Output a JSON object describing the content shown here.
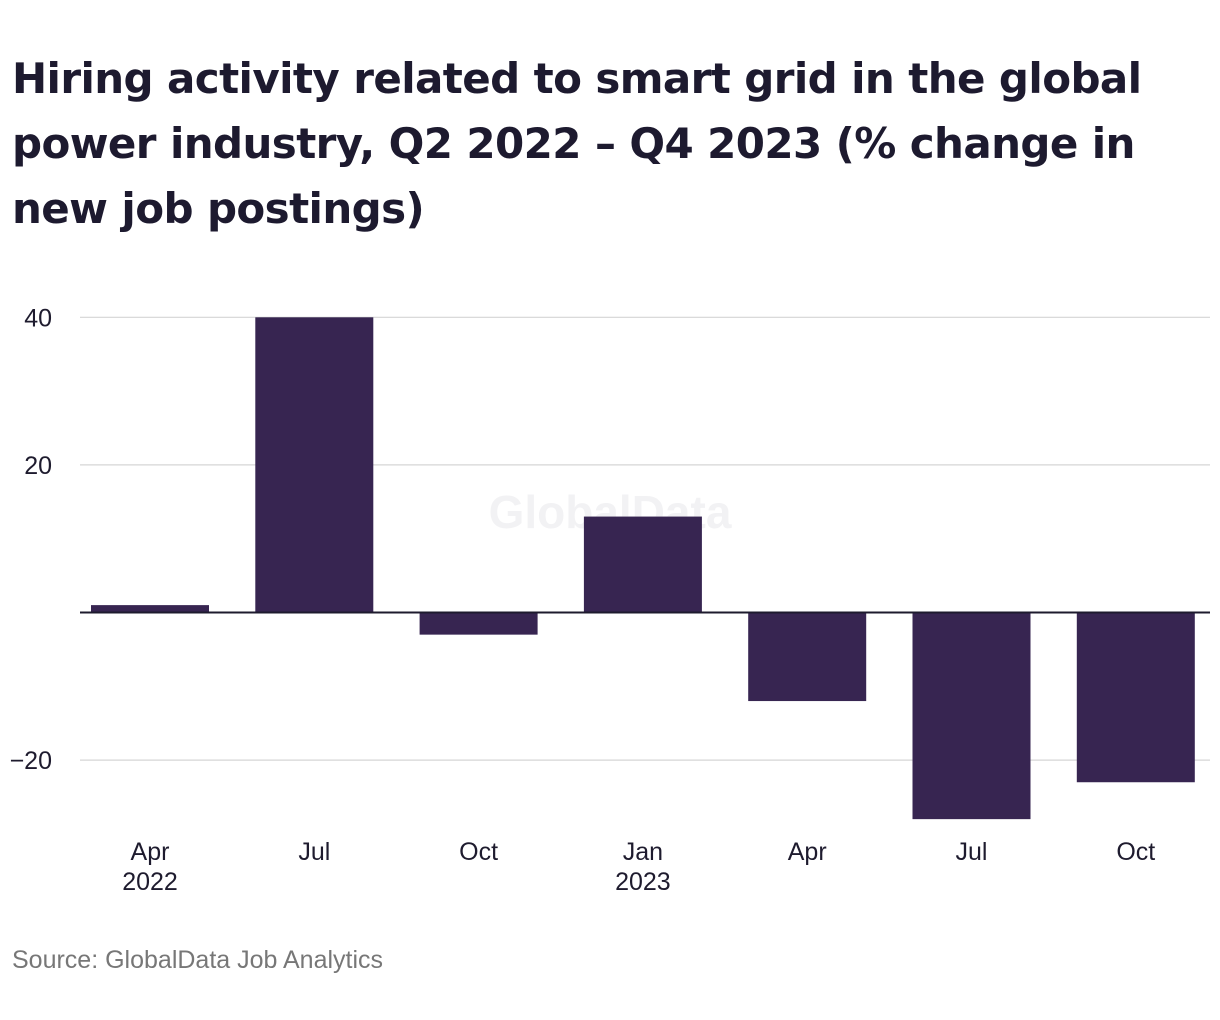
{
  "source": "Source: GlobalData Job Analytics",
  "watermark": "GlobalData",
  "colors": {
    "bar": "#372551",
    "grid": "#d5d5d5",
    "zero_line": "#1e1b2e",
    "text": "#1e1b2e"
  },
  "chart_data": {
    "type": "bar",
    "title": "Hiring activity related to smart grid in the global power industry, Q2 2022 – Q4 2023 (% change in new job postings)",
    "categories": [
      "Apr 2022",
      "Jul",
      "Oct",
      "Jan 2023",
      "Apr",
      "Jul",
      "Oct"
    ],
    "tick_labels": [
      [
        "Apr",
        "2022"
      ],
      [
        "Jul"
      ],
      [
        "Oct"
      ],
      [
        "Jan",
        "2023"
      ],
      [
        "Apr"
      ],
      [
        "Jul"
      ],
      [
        "Oct"
      ]
    ],
    "values": [
      1,
      40,
      -3,
      13,
      -12,
      -28,
      -23
    ],
    "ylim": [
      -28,
      40
    ],
    "yticks": [
      40,
      20,
      -20
    ],
    "ytick_labels": [
      "40",
      "20",
      "−20"
    ],
    "xlabel": "",
    "ylabel": "",
    "grid": true,
    "legend": false
  }
}
